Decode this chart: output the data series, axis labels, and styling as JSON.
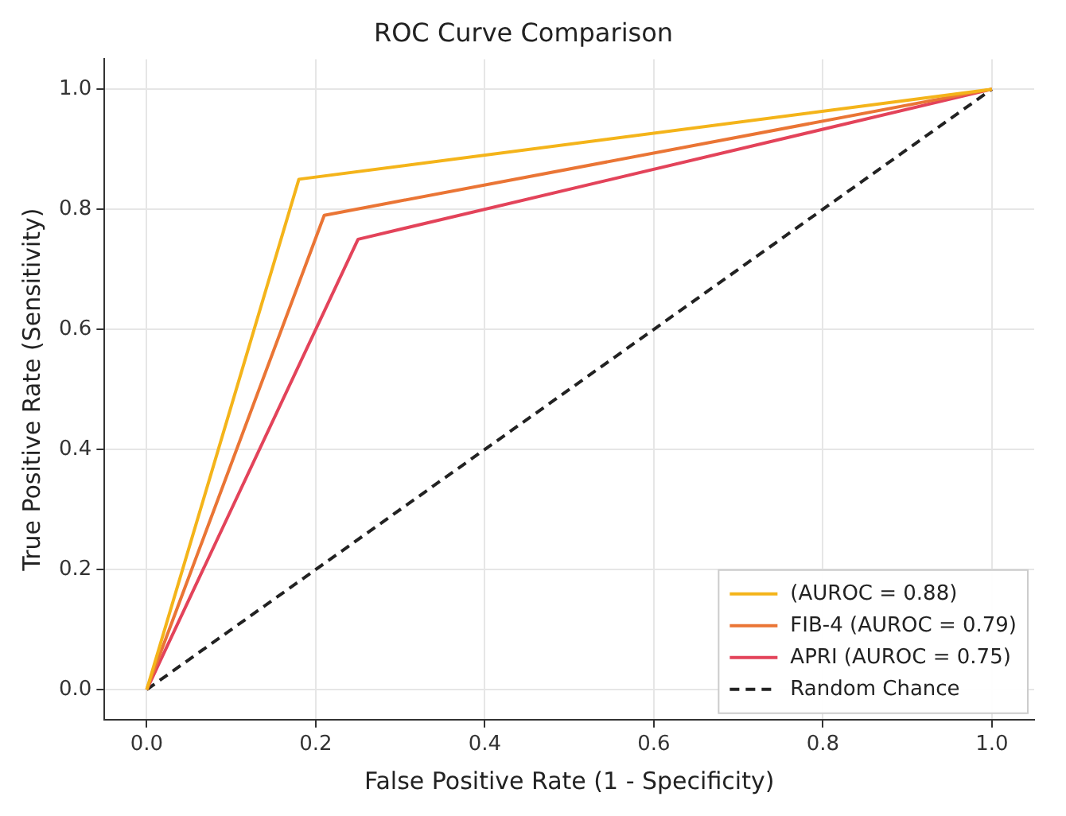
{
  "chart_data": {
    "type": "line",
    "title": "ROC Curve Comparison",
    "xlabel": "False Positive Rate (1 - Specificity)",
    "ylabel": "True Positive Rate (Sensitivity)",
    "series": [
      {
        "name": "(AUROC = 0.88)",
        "color": "#f4b41a",
        "x": [
          0,
          0.18,
          1
        ],
        "values": [
          0,
          0.85,
          1
        ]
      },
      {
        "name": "FIB-4 (AUROC = 0.79)",
        "color": "#ea7535",
        "x": [
          0,
          0.21,
          1
        ],
        "values": [
          0,
          0.79,
          1
        ]
      },
      {
        "name": "APRI (AUROC = 0.75)",
        "color": "#e3435a",
        "x": [
          0,
          0.25,
          1
        ],
        "values": [
          0,
          0.75,
          1
        ]
      },
      {
        "name": "Random Chance",
        "color": "#222222",
        "x": [
          0,
          1
        ],
        "values": [
          0,
          1
        ],
        "line_style": "dashed"
      }
    ],
    "xlim": [
      -0.05,
      1.05
    ],
    "ylim": [
      -0.05,
      1.05
    ],
    "xticks": [
      {
        "value": 0,
        "label": "0.0"
      },
      {
        "value": 0.2,
        "label": "0.2"
      },
      {
        "value": 0.4,
        "label": "0.4"
      },
      {
        "value": 0.6,
        "label": "0.6"
      },
      {
        "value": 0.8,
        "label": "0.8"
      },
      {
        "value": 1,
        "label": "1.0"
      }
    ],
    "yticks": [
      {
        "value": 0,
        "label": "0.0"
      },
      {
        "value": 0.2,
        "label": "0.2"
      },
      {
        "value": 0.4,
        "label": "0.4"
      },
      {
        "value": 0.6,
        "label": "0.6"
      },
      {
        "value": 0.8,
        "label": "0.8"
      },
      {
        "value": 1,
        "label": "1.0"
      }
    ],
    "grid": true,
    "legend": "bottom right",
    "marker": "none",
    "line_style": "solid"
  }
}
